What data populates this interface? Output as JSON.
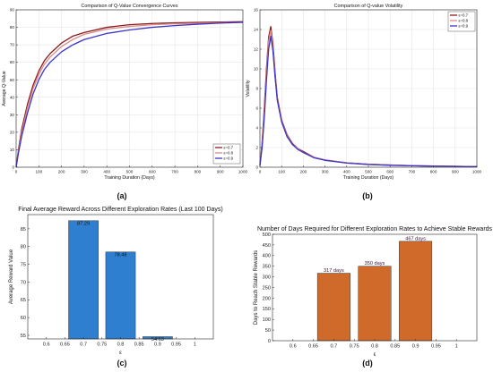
{
  "panels": {
    "a": {
      "label": "(a)"
    },
    "b": {
      "label": "(b)"
    },
    "c": {
      "label": "(c)"
    },
    "d": {
      "label": "(d)"
    }
  },
  "colors": {
    "eps07": "#8b1a1a",
    "eps08": "#d98c8c",
    "eps09": "#3a35c8",
    "bar_c": "#2f7fd0",
    "bar_d": "#cf6a2a",
    "axis": "#262626",
    "grid": "#d9d9d9"
  },
  "chart_data": [
    {
      "id": "a",
      "type": "line",
      "title": "Comparison of Q-Value Convergence Curves",
      "xlabel": "Training Duration (Days)",
      "ylabel": "Average Q-Value",
      "xlim": [
        0,
        1000
      ],
      "ylim": [
        0,
        90
      ],
      "xticks": [
        0,
        100,
        200,
        300,
        400,
        500,
        600,
        700,
        800,
        900,
        1000
      ],
      "yticks": [
        0,
        10,
        20,
        30,
        40,
        50,
        60,
        70,
        80,
        90
      ],
      "legend_position": "bottom-right",
      "grid": true,
      "series": [
        {
          "name": "ε=0.7",
          "color_key": "eps07",
          "x": [
            0,
            10,
            25,
            50,
            75,
            100,
            125,
            150,
            200,
            250,
            300,
            400,
            500,
            600,
            700,
            800,
            900,
            1000
          ],
          "y": [
            0,
            10,
            22,
            36,
            47,
            55,
            61,
            65,
            71,
            75,
            77,
            80,
            81.5,
            82.2,
            82.6,
            82.8,
            83,
            83.2
          ]
        },
        {
          "name": "ε=0.8",
          "color_key": "eps08",
          "x": [
            0,
            10,
            25,
            50,
            75,
            100,
            125,
            150,
            200,
            250,
            300,
            400,
            500,
            600,
            700,
            800,
            900,
            1000
          ],
          "y": [
            0,
            9,
            20,
            34,
            45,
            53,
            59,
            63,
            69,
            73,
            76,
            79,
            80.5,
            81.5,
            82,
            82.3,
            82.6,
            82.8
          ]
        },
        {
          "name": "ε=0.9",
          "color_key": "eps09",
          "x": [
            0,
            10,
            25,
            50,
            75,
            100,
            125,
            150,
            200,
            250,
            300,
            400,
            500,
            600,
            700,
            800,
            900,
            1000
          ],
          "y": [
            0,
            8,
            18,
            31,
            42,
            50,
            56,
            60,
            66,
            70,
            73,
            76.5,
            78.5,
            80,
            81,
            81.8,
            82.4,
            82.9
          ]
        }
      ]
    },
    {
      "id": "b",
      "type": "line",
      "title": "Comparison of Q-value Volatility",
      "xlabel": "Training Duration (Days)",
      "ylabel": "Volatility",
      "xlim": [
        0,
        1000
      ],
      "ylim": [
        0,
        16
      ],
      "xticks": [
        0,
        100,
        200,
        300,
        400,
        500,
        600,
        700,
        800,
        900,
        1000
      ],
      "yticks": [
        0,
        2,
        4,
        6,
        8,
        10,
        12,
        14,
        16
      ],
      "legend_position": "top-right",
      "grid": true,
      "series": [
        {
          "name": "ε=0.7",
          "color_key": "eps07",
          "x": [
            0,
            10,
            20,
            30,
            40,
            50,
            60,
            70,
            80,
            100,
            125,
            150,
            175,
            200,
            250,
            300,
            400,
            500,
            600,
            700,
            800,
            900,
            1000
          ],
          "y": [
            0.2,
            2.5,
            6,
            10,
            13.2,
            14.3,
            12.5,
            9.6,
            7.1,
            4.8,
            3.3,
            2.4,
            1.9,
            1.6,
            1.0,
            0.75,
            0.45,
            0.3,
            0.22,
            0.16,
            0.12,
            0.09,
            0.07
          ]
        },
        {
          "name": "ε=0.8",
          "color_key": "eps08",
          "x": [
            0,
            10,
            20,
            30,
            40,
            50,
            60,
            70,
            80,
            100,
            125,
            150,
            175,
            200,
            250,
            300,
            400,
            500,
            600,
            700,
            800,
            900,
            1000
          ],
          "y": [
            0.2,
            2.3,
            5.6,
            9.5,
            12.8,
            13.9,
            12.1,
            9.3,
            6.9,
            4.7,
            3.2,
            2.3,
            1.9,
            1.5,
            1.0,
            0.75,
            0.45,
            0.3,
            0.22,
            0.16,
            0.12,
            0.09,
            0.07
          ]
        },
        {
          "name": "ε=0.9",
          "color_key": "eps09",
          "x": [
            0,
            10,
            20,
            30,
            40,
            50,
            60,
            70,
            80,
            100,
            125,
            150,
            175,
            200,
            250,
            300,
            400,
            500,
            600,
            700,
            800,
            900,
            1000
          ],
          "y": [
            0.2,
            2.0,
            5.0,
            8.8,
            12.0,
            13.3,
            11.8,
            9.1,
            6.8,
            4.6,
            3.1,
            2.3,
            1.8,
            1.5,
            0.95,
            0.7,
            0.42,
            0.28,
            0.2,
            0.15,
            0.11,
            0.08,
            0.06
          ]
        }
      ]
    },
    {
      "id": "c",
      "type": "bar",
      "title": "Final Average Reward Across Different Exploration Rates (Last 100 Days)",
      "xlabel": "ε",
      "ylabel": "Average Reward Value",
      "xlim": [
        0.55,
        1.05
      ],
      "ylim": [
        54,
        89
      ],
      "xticks": [
        0.6,
        0.65,
        0.7,
        0.75,
        0.8,
        0.85,
        0.9,
        0.95,
        1
      ],
      "xtick_labels": [
        "0.6",
        "0.65",
        "0.7",
        "0.75",
        "0.8",
        "0.85",
        "0.9",
        "0.95",
        "1"
      ],
      "yticks": [
        55,
        60,
        65,
        70,
        75,
        80,
        85
      ],
      "categories": [
        0.7,
        0.8,
        0.9
      ],
      "values": [
        87.29,
        78.48,
        54.63
      ],
      "data_labels": [
        "87.29",
        "78.48",
        "54.63"
      ],
      "bar_width": 0.08,
      "grid": false
    },
    {
      "id": "d",
      "type": "bar",
      "title": "Number of Days Required for Different Exploration Rates to Achieve Stable Rewards",
      "xlabel": "ε",
      "ylabel": "Days to Reach Stable Rewards",
      "xlim": [
        0.55,
        1.05
      ],
      "ylim": [
        0,
        500
      ],
      "xticks": [
        0.6,
        0.65,
        0.7,
        0.75,
        0.8,
        0.85,
        0.9,
        0.95,
        1
      ],
      "xtick_labels": [
        "0.6",
        "0.65",
        "0.7",
        "0.75",
        "0.8",
        "0.85",
        "0.9",
        "0.95",
        "1"
      ],
      "yticks": [
        0,
        50,
        100,
        150,
        200,
        250,
        300,
        350,
        400,
        450,
        500
      ],
      "categories": [
        0.7,
        0.8,
        0.9
      ],
      "values": [
        317,
        350,
        467
      ],
      "data_labels": [
        "317 days",
        "350 days",
        "467 days"
      ],
      "bar_width": 0.08,
      "grid": false
    }
  ]
}
